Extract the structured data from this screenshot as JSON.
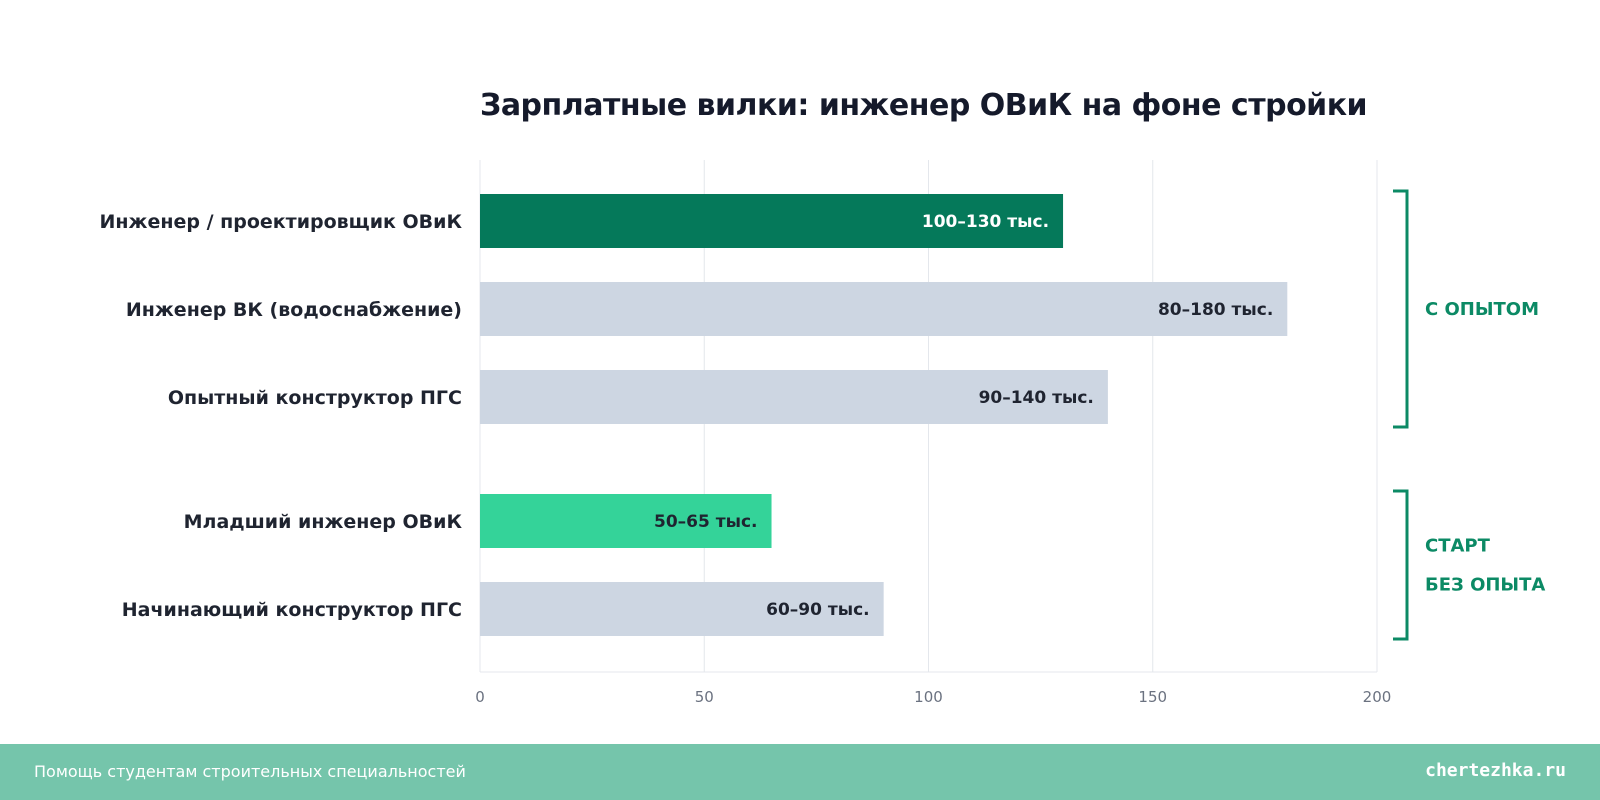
{
  "chart_data": {
    "type": "bar",
    "orientation": "horizontal",
    "title": "Зарплатные вилки: инженер ОВиК на фоне стройки",
    "xlim": [
      0,
      200
    ],
    "xticks": [
      0,
      50,
      100,
      150,
      200
    ],
    "grid": true,
    "categories": [
      "Инженер / проектировщик ОВиК",
      "Инженер ВК (водоснабжение)",
      "Опытный конструктор ПГС",
      "Младший инженер ОВиК",
      "Начинающий конструктор ПГС"
    ],
    "values": [
      130,
      180,
      140,
      65,
      90
    ],
    "value_labels": [
      "100–130 тыс.",
      "80–180 тыс.",
      "90–140 тыс.",
      "50–65 тыс.",
      "60–90 тыс."
    ],
    "bar_colors": [
      "#05795a",
      "#cdd6e2",
      "#cdd6e2",
      "#34d399",
      "#cdd6e2"
    ],
    "label_colors": [
      "#ffffff",
      "#1f2430",
      "#1f2430",
      "#1f2430",
      "#1f2430"
    ],
    "groups": [
      {
        "label_lines": [
          "С ОПЫТОМ"
        ],
        "from": 0,
        "to": 2
      },
      {
        "label_lines": [
          "СТАРТ",
          "БЕЗ ОПЫТА"
        ],
        "from": 3,
        "to": 4
      }
    ],
    "colors": {
      "accent": "#0c8a65",
      "grid": "#e4e7ec",
      "axis_text": "#6b7280",
      "category_text": "#1f2430"
    }
  },
  "footer": {
    "left": "Помощь студентам строительных специальностей",
    "right": "chertezhka.ru"
  }
}
